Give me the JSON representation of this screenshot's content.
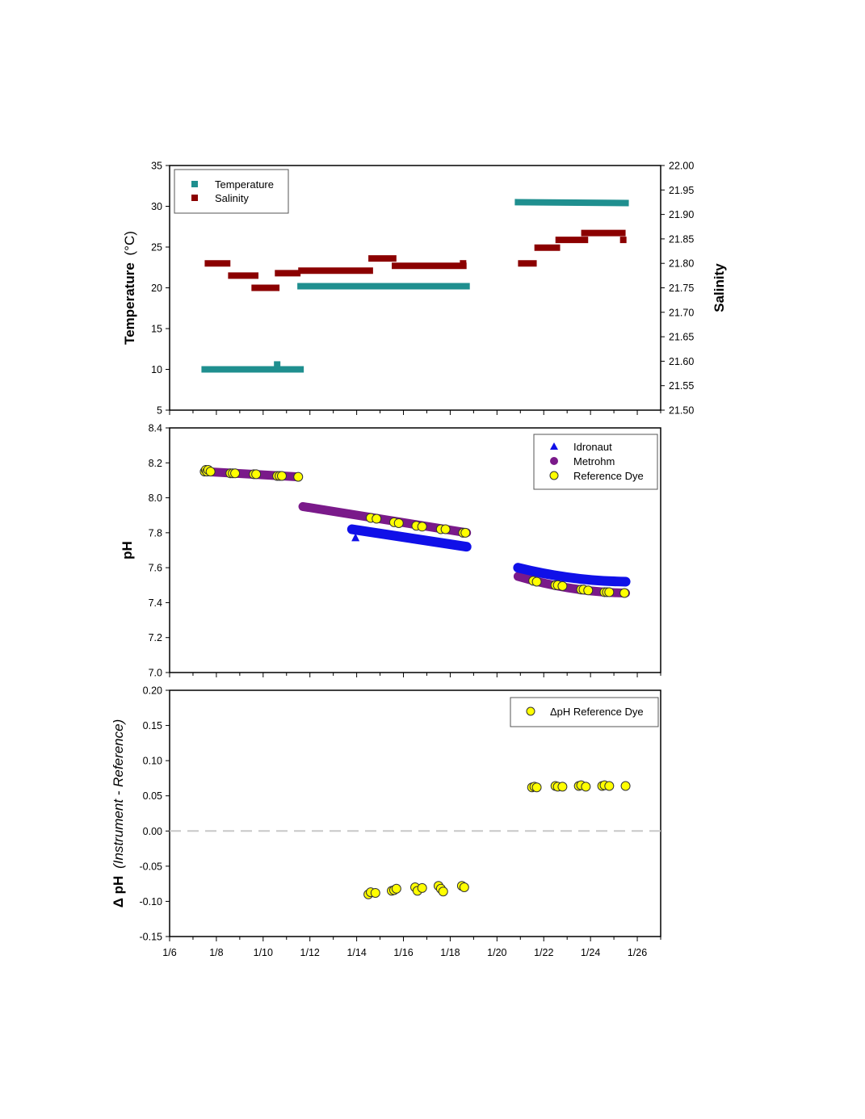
{
  "colors": {
    "temperature": "#1f8f8f",
    "salinity": "#8b0000",
    "idronaut": "#1010e8",
    "metrohm": "#7a1a8a",
    "dye": "#ffff00",
    "zero_line": "#c8c8c8"
  },
  "chart_data": [
    {
      "type": "scatter",
      "title": "",
      "xlabel": "",
      "ylabel_main": "Temperature",
      "ylabel_unit": "(°C)",
      "y2label": "Salinity",
      "xlim": [
        6,
        27
      ],
      "ylim": [
        5,
        35
      ],
      "y2lim": [
        21.5,
        22.0
      ],
      "yticks": [
        "5",
        "10",
        "15",
        "20",
        "25",
        "30",
        "35"
      ],
      "y2ticks": [
        "21.50",
        "21.55",
        "21.60",
        "21.65",
        "21.70",
        "21.75",
        "21.80",
        "21.85",
        "21.90",
        "21.95",
        "22.00"
      ],
      "legend": {
        "position": "top-left",
        "entries": [
          "Temperature",
          "Salinity"
        ]
      },
      "series": [
        {
          "name": "Temperature",
          "axis": "left",
          "marker": "square",
          "segments": [
            {
              "x": [
                7.5,
                11.6
              ],
              "y": [
                10.0,
                10.0
              ]
            },
            {
              "x": [
                11.6,
                18.7
              ],
              "y": [
                20.2,
                20.2
              ]
            },
            {
              "x": [
                20.9,
                25.5
              ],
              "y": [
                30.5,
                30.4
              ]
            }
          ],
          "points": [
            {
              "x": 10.6,
              "y": 10.6
            }
          ]
        },
        {
          "name": "Salinity",
          "axis": "right",
          "marker": "square",
          "segments": [
            {
              "x": [
                7.5,
                8.6
              ],
              "y": [
                21.8,
                21.8
              ]
            },
            {
              "x": [
                8.5,
                9.8
              ],
              "y": [
                21.775,
                21.775
              ]
            },
            {
              "x": [
                9.5,
                10.7
              ],
              "y": [
                21.75,
                21.75
              ]
            },
            {
              "x": [
                10.5,
                11.6
              ],
              "y": [
                21.78,
                21.78
              ]
            },
            {
              "x": [
                11.5,
                14.7
              ],
              "y": [
                21.785,
                21.785
              ]
            },
            {
              "x": [
                14.5,
                15.7
              ],
              "y": [
                21.81,
                21.81
              ]
            },
            {
              "x": [
                15.5,
                18.7
              ],
              "y": [
                21.795,
                21.795
              ]
            },
            {
              "x": [
                20.9,
                21.7
              ],
              "y": [
                21.8,
                21.8
              ]
            },
            {
              "x": [
                21.6,
                22.7
              ],
              "y": [
                21.832,
                21.832
              ]
            },
            {
              "x": [
                22.5,
                23.9
              ],
              "y": [
                21.848,
                21.848
              ]
            },
            {
              "x": [
                23.6,
                25.5
              ],
              "y": [
                21.862,
                21.862
              ]
            }
          ],
          "points": [
            {
              "x": 18.55,
              "y": 21.8
            },
            {
              "x": 25.4,
              "y": 21.848
            }
          ]
        }
      ]
    },
    {
      "type": "scatter",
      "title": "",
      "xlabel": "",
      "ylabel": "pH",
      "xlim": [
        6,
        27
      ],
      "ylim": [
        7.0,
        8.4
      ],
      "yticks": [
        "7.0",
        "7.2",
        "7.4",
        "7.6",
        "7.8",
        "8.0",
        "8.2",
        "8.4"
      ],
      "legend": {
        "position": "top-right",
        "entries": [
          "Idronaut",
          "Metrohm",
          "Reference Dye"
        ]
      },
      "series": [
        {
          "name": "Idronaut",
          "marker": "triangle",
          "curves": [
            {
              "x": [
                13.8,
                18.7
              ],
              "y": [
                7.82,
                7.72
              ],
              "curvature": 0
            },
            {
              "x": [
                20.9,
                25.5
              ],
              "y": [
                7.6,
                7.52
              ],
              "curvature": 1
            }
          ],
          "points": [
            {
              "x": 13.95,
              "y": 7.77
            }
          ]
        },
        {
          "name": "Metrohm",
          "marker": "circle",
          "curves": [
            {
              "x": [
                7.5,
                11.5
              ],
              "y": [
                8.15,
                8.12
              ],
              "curvature": 0
            },
            {
              "x": [
                11.7,
                18.7
              ],
              "y": [
                7.95,
                7.8
              ],
              "curvature": 0
            },
            {
              "x": [
                20.9,
                25.5
              ],
              "y": [
                7.55,
                7.455
              ],
              "curvature": 1
            }
          ]
        },
        {
          "name": "Reference Dye",
          "marker": "circle",
          "x": [
            7.5,
            7.55,
            7.6,
            7.65,
            7.75,
            8.6,
            8.7,
            8.8,
            9.6,
            9.7,
            10.6,
            10.7,
            10.8,
            11.5,
            14.6,
            14.85,
            15.6,
            15.8,
            16.55,
            16.8,
            17.6,
            17.8,
            18.55,
            18.65,
            21.55,
            21.7,
            22.5,
            22.6,
            22.8,
            23.6,
            23.7,
            23.9,
            24.6,
            24.7,
            24.8,
            25.45
          ],
          "y": [
            8.15,
            8.16,
            8.15,
            8.16,
            8.15,
            8.14,
            8.14,
            8.14,
            8.135,
            8.135,
            8.125,
            8.125,
            8.125,
            8.12,
            7.885,
            7.88,
            7.86,
            7.855,
            7.84,
            7.835,
            7.82,
            7.82,
            7.8,
            7.8,
            7.525,
            7.52,
            7.5,
            7.5,
            7.495,
            7.475,
            7.475,
            7.47,
            7.46,
            7.46,
            7.46,
            7.455
          ]
        }
      ]
    },
    {
      "type": "scatter",
      "title": "",
      "xlabel": "",
      "ylabel_main": "Δ pH",
      "ylabel_italic": "(Instrument - Reference)",
      "xlim": [
        6,
        27
      ],
      "ylim": [
        -0.15,
        0.2
      ],
      "yticks": [
        "-0.15",
        "-0.10",
        "-0.05",
        "0.00",
        "0.05",
        "0.10",
        "0.15",
        "0.20"
      ],
      "xticks": [
        "1/6",
        "1/8",
        "1/10",
        "1/12",
        "1/14",
        "1/16",
        "1/18",
        "1/20",
        "1/22",
        "1/24",
        "1/26"
      ],
      "reference_line": {
        "y": 0.0,
        "style": "dashed"
      },
      "legend": {
        "position": "top-right",
        "entries": [
          "ΔpH Reference Dye"
        ]
      },
      "series": [
        {
          "name": "ΔpH Reference Dye",
          "marker": "circle",
          "x": [
            14.5,
            14.6,
            14.8,
            15.5,
            15.6,
            15.7,
            16.5,
            16.6,
            16.8,
            17.5,
            17.6,
            17.7,
            18.5,
            18.6,
            21.5,
            21.6,
            21.7,
            22.5,
            22.6,
            22.8,
            23.5,
            23.6,
            23.8,
            24.5,
            24.6,
            24.8,
            25.5
          ],
          "y": [
            -0.09,
            -0.087,
            -0.088,
            -0.085,
            -0.084,
            -0.082,
            -0.08,
            -0.085,
            -0.081,
            -0.078,
            -0.082,
            -0.086,
            -0.078,
            -0.08,
            0.062,
            0.063,
            0.062,
            0.064,
            0.063,
            0.063,
            0.064,
            0.065,
            0.063,
            0.064,
            0.065,
            0.064,
            0.064
          ]
        }
      ]
    }
  ]
}
